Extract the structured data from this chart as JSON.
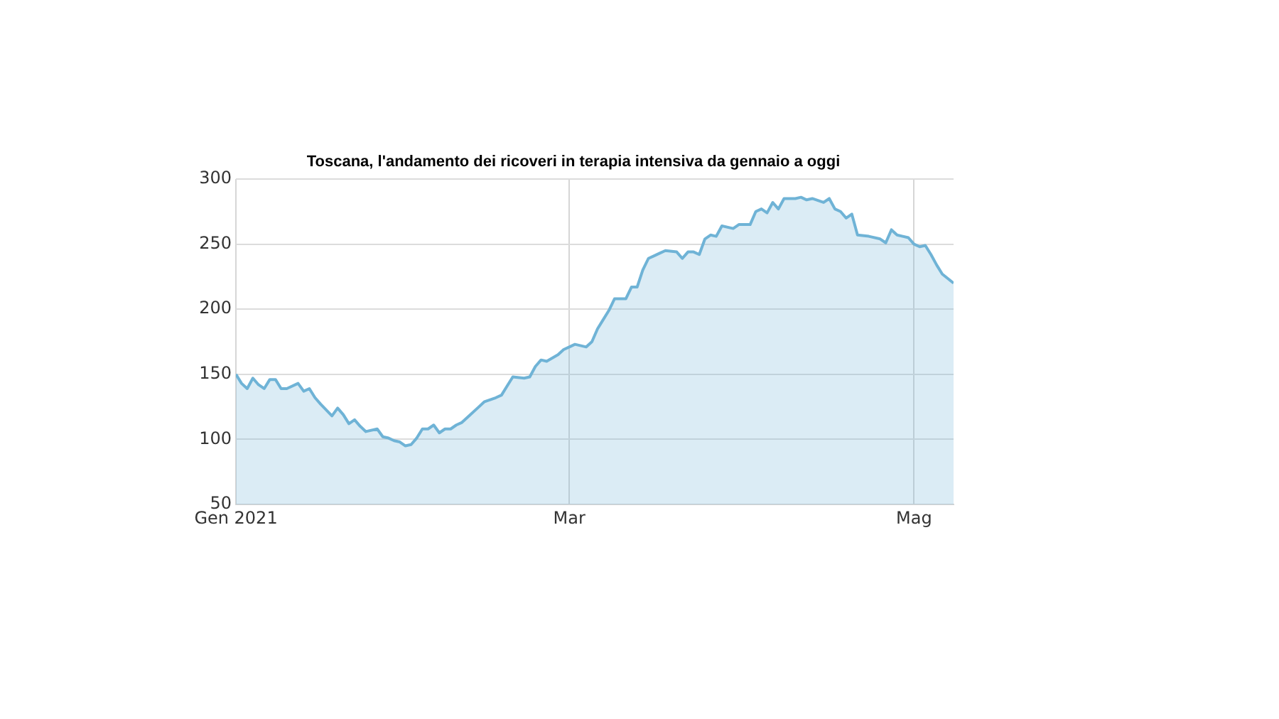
{
  "chart_data": {
    "type": "area",
    "title": "Toscana, l'andamento dei ricoveri in terapia intensiva da gennaio a oggi",
    "x": [
      "2021-01-01",
      "2021-01-02",
      "2021-01-03",
      "2021-01-04",
      "2021-01-05",
      "2021-01-06",
      "2021-01-07",
      "2021-01-08",
      "2021-01-09",
      "2021-01-10",
      "2021-01-12",
      "2021-01-13",
      "2021-01-14",
      "2021-01-15",
      "2021-01-16",
      "2021-01-18",
      "2021-01-19",
      "2021-01-20",
      "2021-01-21",
      "2021-01-22",
      "2021-01-23",
      "2021-01-24",
      "2021-01-26",
      "2021-01-27",
      "2021-01-28",
      "2021-01-29",
      "2021-01-30",
      "2021-01-31",
      "2021-02-01",
      "2021-02-02",
      "2021-02-03",
      "2021-02-04",
      "2021-02-05",
      "2021-02-06",
      "2021-02-07",
      "2021-02-08",
      "2021-02-09",
      "2021-02-10",
      "2021-02-11",
      "2021-02-13",
      "2021-02-14",
      "2021-02-16",
      "2021-02-17",
      "2021-02-18",
      "2021-02-19",
      "2021-02-21",
      "2021-02-22",
      "2021-02-23",
      "2021-02-24",
      "2021-02-25",
      "2021-02-27",
      "2021-02-28",
      "2021-03-01",
      "2021-03-02",
      "2021-03-04",
      "2021-03-05",
      "2021-03-06",
      "2021-03-07",
      "2021-03-08",
      "2021-03-09",
      "2021-03-11",
      "2021-03-12",
      "2021-03-13",
      "2021-03-14",
      "2021-03-15",
      "2021-03-16",
      "2021-03-17",
      "2021-03-18",
      "2021-03-20",
      "2021-03-21",
      "2021-03-22",
      "2021-03-23",
      "2021-03-24",
      "2021-03-25",
      "2021-03-26",
      "2021-03-27",
      "2021-03-28",
      "2021-03-30",
      "2021-03-31",
      "2021-04-02",
      "2021-04-03",
      "2021-04-04",
      "2021-04-05",
      "2021-04-06",
      "2021-04-07",
      "2021-04-08",
      "2021-04-10",
      "2021-04-11",
      "2021-04-12",
      "2021-04-13",
      "2021-04-15",
      "2021-04-16",
      "2021-04-17",
      "2021-04-18",
      "2021-04-19",
      "2021-04-20",
      "2021-04-21",
      "2021-04-23",
      "2021-04-25",
      "2021-04-26",
      "2021-04-27",
      "2021-04-28",
      "2021-04-30",
      "2021-05-01",
      "2021-05-02",
      "2021-05-03",
      "2021-05-04",
      "2021-05-05",
      "2021-05-06",
      "2021-05-08"
    ],
    "series": [
      {
        "color": "#6fb3d6",
        "values": [
          150,
          143,
          139,
          147,
          142,
          139,
          146,
          146,
          139,
          139,
          143,
          137,
          139,
          132,
          127,
          118,
          124,
          119,
          112,
          115,
          110,
          106,
          108,
          102,
          101,
          99,
          98,
          95,
          96,
          101,
          108,
          108,
          111,
          105,
          108,
          108,
          111,
          113,
          117,
          125,
          129,
          132,
          134,
          141,
          148,
          147,
          148,
          156,
          161,
          160,
          165,
          169,
          171,
          173,
          171,
          175,
          185,
          192,
          199,
          208,
          208,
          217,
          217,
          230,
          239,
          241,
          243,
          245,
          244,
          239,
          244,
          244,
          242,
          254,
          257,
          256,
          264,
          262,
          265,
          265,
          275,
          277,
          274,
          282,
          277,
          285,
          285,
          286,
          284,
          285,
          282,
          285,
          277,
          275,
          270,
          273,
          257,
          256,
          254,
          251,
          261,
          257,
          255,
          250,
          248,
          249,
          242,
          234,
          227,
          220
        ]
      }
    ],
    "xlim": [
      "2021-01-01",
      "2021-05-08"
    ],
    "xticks": [
      {
        "value": "2021-01-01",
        "label": "Gen 2021"
      },
      {
        "value": "2021-03-01",
        "label": "Mar"
      },
      {
        "value": "2021-05-01",
        "label": "Mag"
      }
    ],
    "ylim": [
      50,
      300
    ],
    "yticks": [
      50,
      100,
      150,
      200,
      250,
      300
    ],
    "grid": true,
    "legend": false
  }
}
